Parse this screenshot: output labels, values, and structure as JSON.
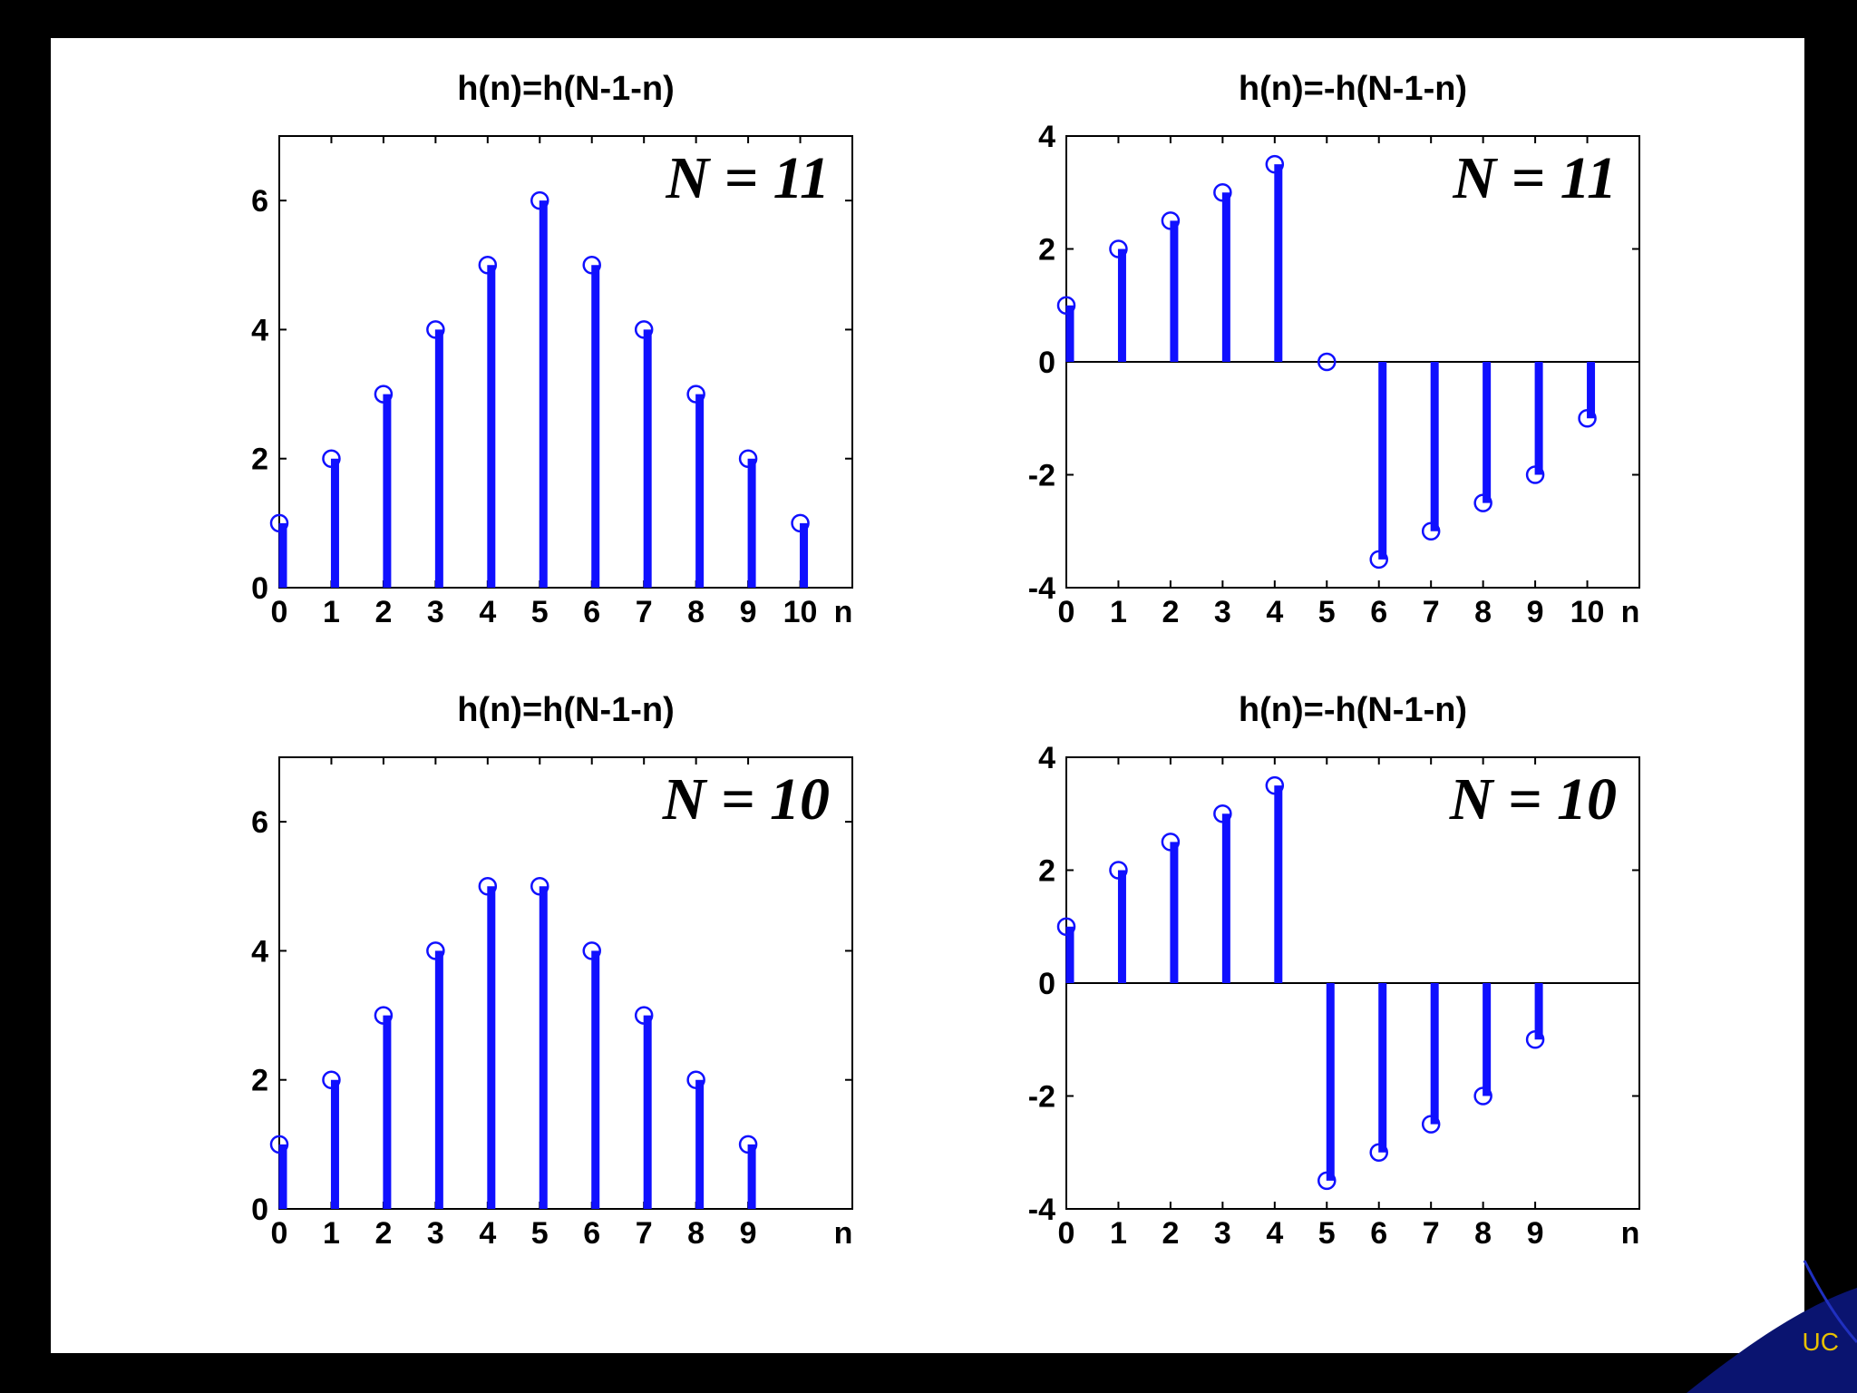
{
  "chart_data": [
    {
      "type": "stem",
      "title": "h(n)=h(N-1-n)",
      "annotation": "N = 11",
      "xlabel": "n",
      "x": [
        0,
        1,
        2,
        3,
        4,
        5,
        6,
        7,
        8,
        9,
        10
      ],
      "values": [
        1,
        2,
        3,
        4,
        5,
        6,
        5,
        4,
        3,
        2,
        1
      ],
      "xlim": [
        0,
        11
      ],
      "ylim": [
        0,
        7
      ],
      "yticks": [
        0,
        2,
        4,
        6
      ],
      "xticks": [
        0,
        1,
        2,
        3,
        4,
        5,
        6,
        7,
        8,
        9,
        10
      ],
      "zero_line": false
    },
    {
      "type": "stem",
      "title": "h(n)=-h(N-1-n)",
      "annotation": "N = 11",
      "xlabel": "n",
      "x": [
        0,
        1,
        2,
        3,
        4,
        5,
        6,
        7,
        8,
        9,
        10
      ],
      "values": [
        1,
        2,
        2.5,
        3,
        3.5,
        0,
        -3.5,
        -3,
        -2.5,
        -2,
        -1
      ],
      "xlim": [
        0,
        11
      ],
      "ylim": [
        -4,
        4
      ],
      "yticks": [
        -4,
        -2,
        0,
        2,
        4
      ],
      "xticks": [
        0,
        1,
        2,
        3,
        4,
        5,
        6,
        7,
        8,
        9,
        10
      ],
      "zero_line": true
    },
    {
      "type": "stem",
      "title": "h(n)=h(N-1-n)",
      "annotation": "N = 10",
      "xlabel": "n",
      "x": [
        0,
        1,
        2,
        3,
        4,
        5,
        6,
        7,
        8,
        9
      ],
      "values": [
        1,
        2,
        3,
        4,
        5,
        5,
        4,
        3,
        2,
        1
      ],
      "xlim": [
        0,
        11
      ],
      "ylim": [
        0,
        7
      ],
      "yticks": [
        0,
        2,
        4,
        6
      ],
      "xticks": [
        0,
        1,
        2,
        3,
        4,
        5,
        6,
        7,
        8,
        9
      ],
      "zero_line": false
    },
    {
      "type": "stem",
      "title": "h(n)=-h(N-1-n)",
      "annotation": "N = 10",
      "xlabel": "n",
      "x": [
        0,
        1,
        2,
        3,
        4,
        5,
        6,
        7,
        8,
        9
      ],
      "values": [
        1,
        2,
        2.5,
        3,
        3.5,
        -3.5,
        -3,
        -2.5,
        -2,
        -1
      ],
      "xlim": [
        0,
        11
      ],
      "ylim": [
        -4,
        4
      ],
      "yticks": [
        -4,
        -2,
        0,
        2,
        4
      ],
      "xticks": [
        0,
        1,
        2,
        3,
        4,
        5,
        6,
        7,
        8,
        9
      ],
      "zero_line": true
    }
  ],
  "colors": {
    "stem": "#1010ff",
    "axis": "#000000",
    "background": "#000000",
    "slide": "#ffffff",
    "footer": "#e8c000"
  },
  "footer_text": "UC"
}
